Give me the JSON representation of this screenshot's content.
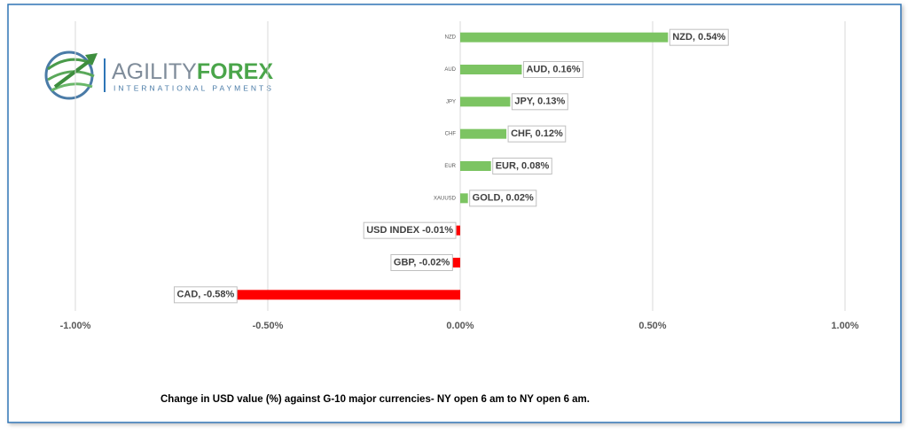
{
  "logo": {
    "brand_part1": "AGILITY",
    "brand_part2": "FOREX",
    "tagline": "INTERNATIONAL PAYMENTS"
  },
  "chart_data": {
    "type": "hbar",
    "categories": [
      "NZD",
      "AUD",
      "JPY",
      "CHF",
      "EUR",
      "XAUUSD",
      null,
      null,
      null
    ],
    "values": [
      0.54,
      0.16,
      0.13,
      0.12,
      0.08,
      0.02,
      -0.01,
      -0.02,
      -0.58
    ],
    "value_labels": [
      "NZD, 0.54%",
      "AUD, 0.16%",
      "JPY, 0.13%",
      "CHF, 0.12%",
      "EUR, 0.08%",
      "GOLD, 0.02%",
      "USD INDEX -0.01%",
      "GBP, -0.02%",
      "CAD, -0.58%"
    ],
    "positive_color": "#7cc462",
    "negative_color": "#ff0000",
    "xlim": [
      -1,
      1
    ],
    "xticks": [
      {
        "value": -1,
        "label": "-1.00%"
      },
      {
        "value": -0.5,
        "label": "-0.50%"
      },
      {
        "value": 0,
        "label": "0.00%"
      },
      {
        "value": 0.5,
        "label": "0.50%"
      },
      {
        "value": 1,
        "label": "1.00%"
      }
    ],
    "grid": true,
    "caption": "Change in  USD value (%)  against  G-10 major currencies- NY open 6 am to NY open 6 am."
  }
}
